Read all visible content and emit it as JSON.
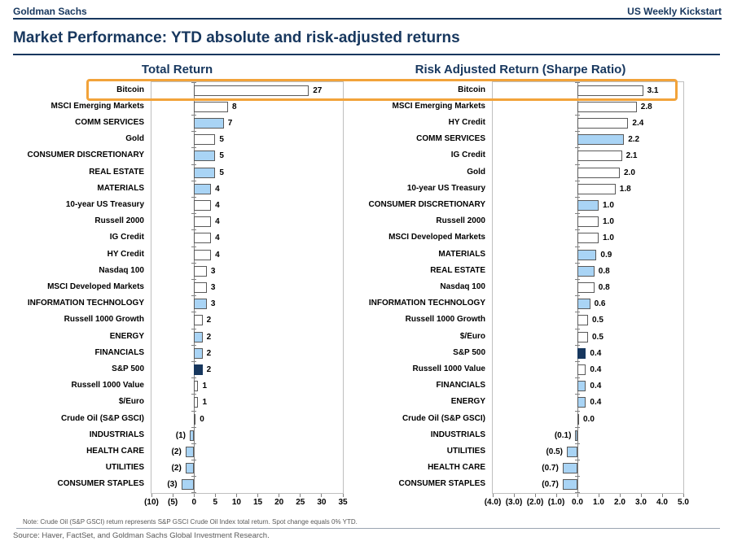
{
  "header": {
    "brand": "Goldman Sachs",
    "publication": "US Weekly Kickstart"
  },
  "title": "Market Performance: YTD absolute and risk-adjusted returns",
  "colors": {
    "navy": "#17375E",
    "bar_blue": "#A9D4F5",
    "bar_navy": "#17375E",
    "bar_border": "#595959",
    "plot_border": "#BFBFBF",
    "highlight_orange": "#F2A33A",
    "footer_gray": "#595959"
  },
  "highlight": {
    "description": "orange box around Bitcoin rows in both charts"
  },
  "chart_data": [
    {
      "type": "bar",
      "orientation": "horizontal",
      "title": "Total Return",
      "xlim": [
        -10,
        35
      ],
      "grid": false,
      "legend": "none",
      "tick_values": [
        -10,
        -5,
        0,
        5,
        10,
        15,
        20,
        25,
        30,
        35
      ],
      "tick_labels": [
        "(10)",
        "(5)",
        "0",
        "5",
        "10",
        "15",
        "20",
        "25",
        "30",
        "35"
      ],
      "categories": [
        "Bitcoin",
        "MSCI Emerging Markets",
        "COMM SERVICES",
        "Gold",
        "CONSUMER DISCRETIONARY",
        "REAL ESTATE",
        "MATERIALS",
        "10-year US Treasury",
        "Russell 2000",
        "IG Credit",
        "HY Credit",
        "Nasdaq 100",
        "MSCI Developed Markets",
        "INFORMATION TECHNOLOGY",
        "Russell 1000 Growth",
        "ENERGY",
        "FINANCIALS",
        "S&P 500",
        "Russell 1000 Value",
        "$/Euro",
        "Crude Oil (S&P GSCI)",
        "INDUSTRIALS",
        "HEALTH CARE",
        "UTILITIES",
        "CONSUMER STAPLES"
      ],
      "values": [
        27,
        8,
        7,
        5,
        5,
        5,
        4,
        4,
        4,
        4,
        4,
        3,
        3,
        3,
        2,
        2,
        2,
        2,
        1,
        1,
        0,
        -1,
        -2,
        -2,
        -3
      ],
      "value_labels": [
        "27",
        "8",
        "7",
        "5",
        "5",
        "5",
        "4",
        "4",
        "4",
        "4",
        "4",
        "3",
        "3",
        "3",
        "2",
        "2",
        "2",
        "2",
        "1",
        "1",
        "0",
        "(1)",
        "(2)",
        "(2)",
        "(3)"
      ],
      "bar_styles": [
        "white",
        "white",
        "blue",
        "white",
        "blue",
        "blue",
        "blue",
        "white",
        "white",
        "white",
        "white",
        "white",
        "white",
        "blue",
        "white",
        "blue",
        "blue",
        "navy",
        "white",
        "white",
        "white",
        "blue",
        "blue",
        "blue",
        "blue"
      ]
    },
    {
      "type": "bar",
      "orientation": "horizontal",
      "title": "Risk Adjusted Return (Sharpe Ratio)",
      "xlim": [
        -4,
        5
      ],
      "grid": false,
      "legend": "none",
      "tick_values": [
        -4,
        -3,
        -2,
        -1,
        0,
        1,
        2,
        3,
        4,
        5
      ],
      "tick_labels": [
        "(4.0)",
        "(3.0)",
        "(2.0)",
        "(1.0)",
        "0.0",
        "1.0",
        "2.0",
        "3.0",
        "4.0",
        "5.0"
      ],
      "categories": [
        "Bitcoin",
        "MSCI Emerging Markets",
        "HY Credit",
        "COMM SERVICES",
        "IG Credit",
        "Gold",
        "10-year US Treasury",
        "CONSUMER DISCRETIONARY",
        "Russell 2000",
        "MSCI Developed Markets",
        "MATERIALS",
        "REAL ESTATE",
        "Nasdaq 100",
        "INFORMATION TECHNOLOGY",
        "Russell 1000 Growth",
        "$/Euro",
        "S&P 500",
        "Russell 1000 Value",
        "FINANCIALS",
        "ENERGY",
        "Crude Oil (S&P GSCI)",
        "INDUSTRIALS",
        "UTILITIES",
        "HEALTH CARE",
        "CONSUMER STAPLES"
      ],
      "values": [
        3.1,
        2.8,
        2.4,
        2.2,
        2.1,
        2.0,
        1.8,
        1.0,
        1.0,
        1.0,
        0.9,
        0.8,
        0.8,
        0.6,
        0.5,
        0.5,
        0.4,
        0.4,
        0.4,
        0.4,
        0.0,
        -0.1,
        -0.5,
        -0.7,
        -0.7
      ],
      "value_labels": [
        "3.1",
        "2.8",
        "2.4",
        "2.2",
        "2.1",
        "2.0",
        "1.8",
        "1.0",
        "1.0",
        "1.0",
        "0.9",
        "0.8",
        "0.8",
        "0.6",
        "0.5",
        "0.5",
        "0.4",
        "0.4",
        "0.4",
        "0.4",
        "0.0",
        "(0.1)",
        "(0.5)",
        "(0.7)",
        "(0.7)"
      ],
      "bar_styles": [
        "white",
        "white",
        "white",
        "blue",
        "white",
        "white",
        "white",
        "blue",
        "white",
        "white",
        "blue",
        "blue",
        "white",
        "blue",
        "white",
        "white",
        "navy",
        "white",
        "blue",
        "blue",
        "white",
        "blue",
        "blue",
        "blue",
        "blue"
      ]
    }
  ],
  "note": "Note: Crude Oil (S&P GSCI) return represents S&P GSCI Crude Oil Index total return. Spot change equals 0% YTD.",
  "source": "Source: Haver, FactSet, and Goldman Sachs Global Investment Research."
}
